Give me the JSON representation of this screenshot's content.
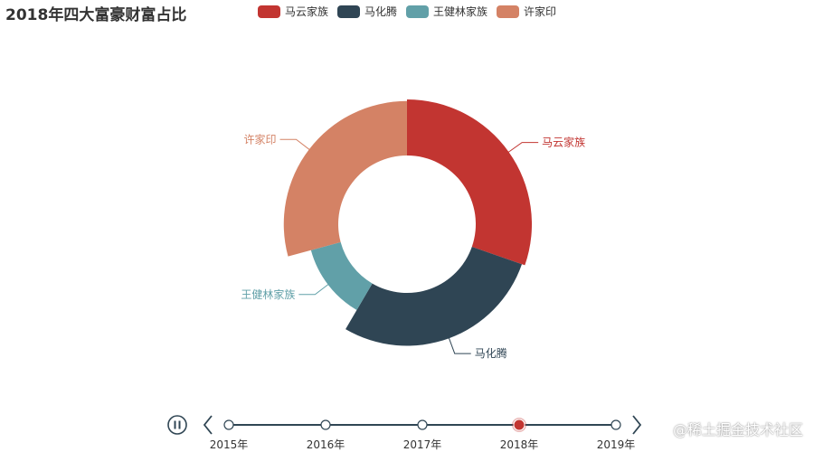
{
  "chart_data": {
    "type": "pie",
    "variant": "donut-roseType",
    "title": "2018年四大富豪财富占比",
    "legend_placement": "top",
    "series": [
      {
        "name": "马云家族",
        "value": 2700,
        "color": "#c23531"
      },
      {
        "name": "马化腾",
        "value": 2500,
        "color": "#2f4554"
      },
      {
        "name": "王健林家族",
        "value": 1100,
        "color": "#61a0a8"
      },
      {
        "name": "许家印",
        "value": 2600,
        "color": "#d48265"
      }
    ]
  },
  "timeline": {
    "play_icon": "pause-icon",
    "prev_icon": "chevron-left-icon",
    "next_icon": "chevron-right-icon",
    "labels": [
      "2015年",
      "2016年",
      "2017年",
      "2018年",
      "2019年"
    ],
    "current_index": 3,
    "line_color": "#304654",
    "active_color": "#c23531"
  },
  "watermark": "@稀土掘金技术社区"
}
